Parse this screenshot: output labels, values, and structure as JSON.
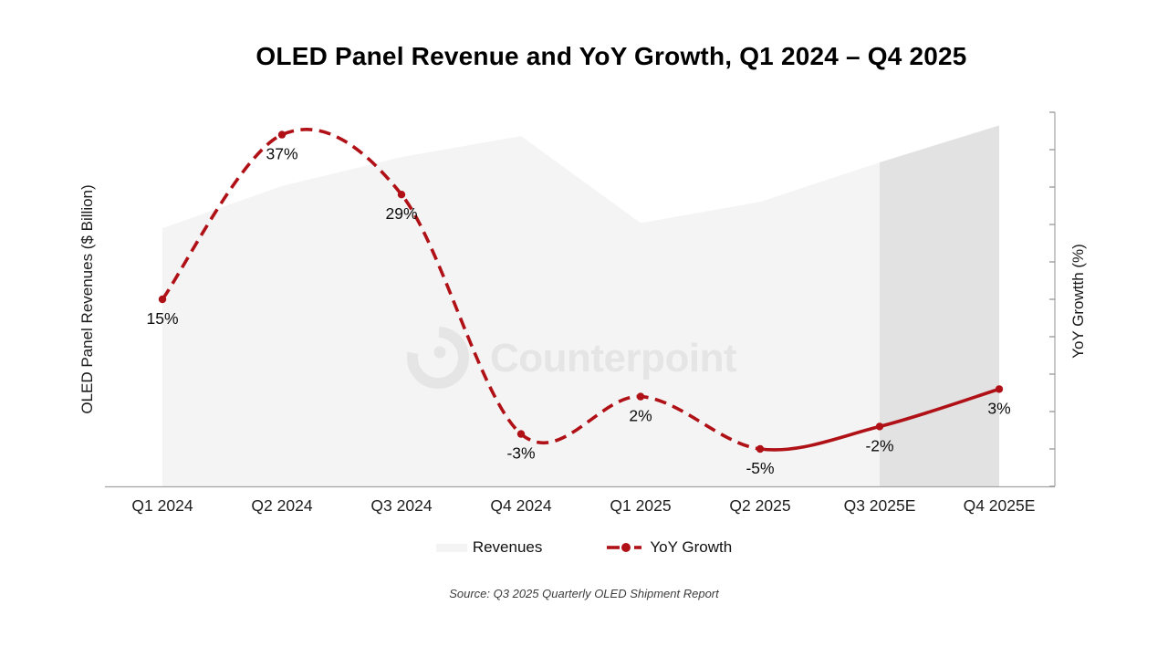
{
  "title": "OLED Panel Revenue and YoY Growth, Q1 2024 – Q4 2025",
  "axes": {
    "left_label": "OLED Panel Revenues ($ Billion)",
    "right_label": "YoY Growtth (%)"
  },
  "legend": {
    "revenues_label": "Revenues",
    "yoy_label": "YoY Growth"
  },
  "source": "Source: Q3 2025 Quarterly OLED Shipment Report",
  "watermark": {
    "text": "Counterpoint"
  },
  "colors": {
    "line_red": "#b01116",
    "area_fill": "#f4f4f5",
    "forecast_fill": "#e2e2e3",
    "axis_gray": "#a3a3a3",
    "tick_gray": "#8f8f8f",
    "label_black": "#0d0d0d",
    "watermark_gray": "#e5e5e6"
  },
  "chart_data": {
    "type": "combo",
    "title": "OLED Panel Revenue and YoY Growth, Q1 2024 – Q4 2025",
    "categories": [
      "Q1 2024",
      "Q2 2024",
      "Q3 2024",
      "Q4 2024",
      "Q1 2025",
      "Q2 2025",
      "Q3 2025E",
      "Q4 2025E"
    ],
    "series": [
      {
        "name": "Revenues",
        "type": "area",
        "axis": "left",
        "values_estimated_billion": [
          9.8,
          11.4,
          12.5,
          13.3,
          10.0,
          10.8,
          12.3,
          13.7
        ]
      },
      {
        "name": "YoY Growth",
        "type": "line",
        "axis": "right",
        "values_percent": [
          15,
          37,
          29,
          -3,
          2,
          -5,
          -2,
          3
        ],
        "labels": [
          "15%",
          "37%",
          "29%",
          "-3%",
          "2%",
          "-5%",
          "-2%",
          "3%"
        ],
        "dashed_until_index": 5,
        "solid_from_index": 5,
        "smooth": true
      }
    ],
    "forecast_start_index": 6,
    "left_axis": {
      "label": "OLED Panel Revenues ($ Billion)",
      "range": [
        0,
        15
      ],
      "tick_labels_visible": false
    },
    "right_axis": {
      "label": "YoY Growtth (%)",
      "range": [
        -10,
        40
      ],
      "tick_step": 5,
      "tick_labels_visible": false
    },
    "legend_position": "bottom",
    "grid": false
  }
}
